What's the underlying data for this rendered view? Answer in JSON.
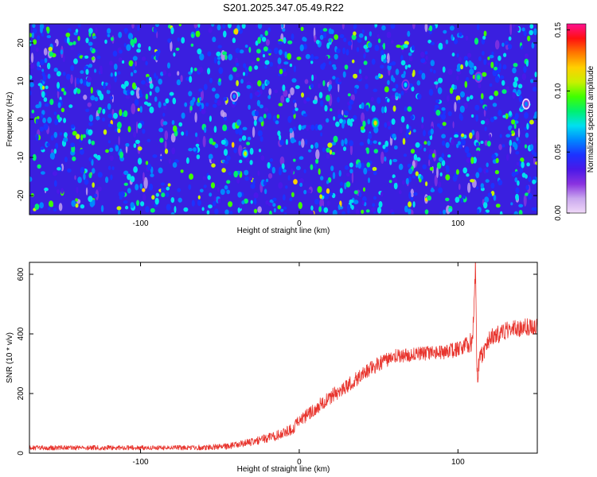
{
  "chart_data": [
    {
      "type": "heatmap",
      "title": "S201.2025.347.05.49.R22",
      "xlabel": "Height of straight line (km)",
      "ylabel": "Frequency (Hz)",
      "xlim": [
        -170,
        150
      ],
      "ylim": [
        -25,
        25
      ],
      "xticks": [
        -100,
        0,
        100
      ],
      "yticks": [
        -20,
        -10,
        0,
        10,
        20
      ],
      "colorbar": {
        "label": "Normalized spectral amplitude",
        "range": [
          0.0,
          0.155
        ],
        "ticks": [
          0.0,
          0.05,
          0.1,
          0.15
        ],
        "tick_labels": [
          "0.00",
          "0.05",
          "0.10",
          "0.15"
        ]
      },
      "colormap": [
        "#f0d8f8",
        "#c9a8ee",
        "#8a33e0",
        "#4a18e8",
        "#1c32ff",
        "#0088ff",
        "#00e0f0",
        "#00f070",
        "#40ff00",
        "#c8f000",
        "#ffd000",
        "#ff7800",
        "#ff1010",
        "#ff1090"
      ],
      "hotspots": [
        {
          "x": 48,
          "y": -1,
          "value": 0.12
        },
        {
          "x": -34,
          "y": -9,
          "value": 0.11
        },
        {
          "x": 113,
          "y": 11,
          "value": 0.09
        },
        {
          "x": 67,
          "y": 9,
          "value": 0.08
        },
        {
          "x": -41,
          "y": 6,
          "value": 0.07
        },
        {
          "x": 143,
          "y": 4,
          "value": 0.06
        }
      ]
    },
    {
      "type": "line",
      "xlabel": "Height of straight line (km)",
      "ylabel": "SNR (10 * v/v)",
      "xlim": [
        -170,
        150
      ],
      "ylim": [
        0,
        640
      ],
      "xticks": [
        -100,
        0,
        100
      ],
      "yticks": [
        0,
        200,
        400,
        600
      ],
      "line_color": "#e8352e",
      "series": [
        {
          "name": "SNR",
          "x": [
            -170,
            -140,
            -110,
            -80,
            -60,
            -45,
            -35,
            -25,
            -15,
            -5,
            0,
            5,
            10,
            20,
            30,
            40,
            50,
            60,
            70,
            80,
            90,
            100,
            105,
            109,
            110,
            111,
            112,
            114,
            120,
            130,
            140,
            150
          ],
          "values": [
            18,
            18,
            18,
            18,
            19,
            23,
            32,
            44,
            58,
            80,
            105,
            128,
            150,
            190,
            225,
            265,
            300,
            325,
            330,
            335,
            338,
            348,
            360,
            380,
            470,
            640,
            240,
            320,
            385,
            410,
            420,
            430
          ],
          "noise": [
            8,
            8,
            8,
            8,
            9,
            10,
            12,
            14,
            17,
            20,
            22,
            22,
            24,
            25,
            25,
            25,
            25,
            24,
            24,
            24,
            24,
            26,
            28,
            40,
            40,
            40,
            40,
            32,
            30,
            30,
            30,
            30
          ]
        }
      ]
    }
  ]
}
